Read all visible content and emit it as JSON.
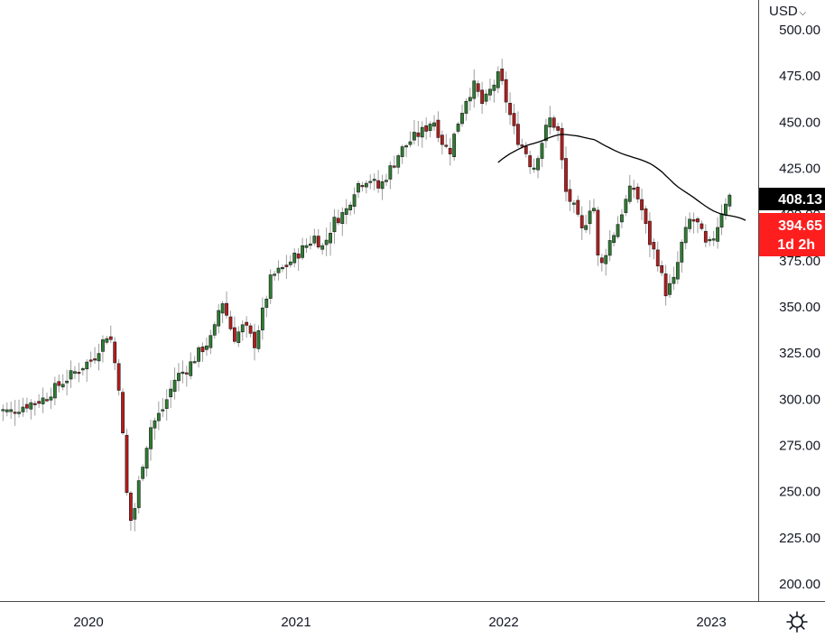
{
  "currency": {
    "label": "USD",
    "chevron": "chevron-down-icon"
  },
  "settings": {
    "icon": "gear-icon"
  },
  "chart_data": {
    "type": "candlestick",
    "x_ticks": [
      "2020",
      "2021",
      "2022",
      "2023"
    ],
    "x_tick_times": [
      2020.0,
      2021.0,
      2022.0,
      2023.0
    ],
    "y_ticks": [
      "200.00",
      "225.00",
      "250.00",
      "275.00",
      "300.00",
      "325.00",
      "350.00",
      "375.00",
      "400.00",
      "425.00",
      "450.00",
      "475.00",
      "500.00"
    ],
    "y_tick_values": [
      200,
      225,
      250,
      275,
      300,
      325,
      350,
      375,
      400,
      425,
      450,
      475,
      500
    ],
    "ylim": [
      194,
      503
    ],
    "xlim": [
      2019.55,
      2023.32
    ],
    "colors": {
      "up": "#26a69a",
      "up_fill": "#2e7d32",
      "down": "#b71c1c",
      "wick": "#9e9e9e",
      "ma": "#000000",
      "last": "#ff1e1e",
      "ma_label": "#000000"
    },
    "badges": {
      "ma_value": "408.13",
      "last_price": "394.65",
      "countdown": "1d 2h"
    },
    "ohlc_weekly_close_keypoints": [
      [
        2019.55,
        295
      ],
      [
        2019.62,
        293
      ],
      [
        2019.7,
        297
      ],
      [
        2019.78,
        300
      ],
      [
        2019.86,
        308
      ],
      [
        2019.95,
        316
      ],
      [
        2020.02,
        322
      ],
      [
        2020.1,
        337
      ],
      [
        2020.15,
        305
      ],
      [
        2020.19,
        240
      ],
      [
        2020.21,
        232
      ],
      [
        2020.25,
        260
      ],
      [
        2020.3,
        285
      ],
      [
        2020.36,
        295
      ],
      [
        2020.42,
        312
      ],
      [
        2020.47,
        316
      ],
      [
        2020.53,
        325
      ],
      [
        2020.6,
        334
      ],
      [
        2020.64,
        355
      ],
      [
        2020.7,
        333
      ],
      [
        2020.75,
        340
      ],
      [
        2020.8,
        330
      ],
      [
        2020.85,
        352
      ],
      [
        2020.88,
        366
      ],
      [
        2020.95,
        372
      ],
      [
        2021.02,
        380
      ],
      [
        2021.09,
        388
      ],
      [
        2021.13,
        382
      ],
      [
        2021.18,
        396
      ],
      [
        2021.24,
        402
      ],
      [
        2021.29,
        416
      ],
      [
        2021.35,
        420
      ],
      [
        2021.4,
        414
      ],
      [
        2021.44,
        422
      ],
      [
        2021.5,
        434
      ],
      [
        2021.56,
        441
      ],
      [
        2021.62,
        446
      ],
      [
        2021.66,
        452
      ],
      [
        2021.7,
        440
      ],
      [
        2021.74,
        434
      ],
      [
        2021.78,
        450
      ],
      [
        2021.82,
        463
      ],
      [
        2021.86,
        470
      ],
      [
        2021.9,
        459
      ],
      [
        2021.94,
        468
      ],
      [
        2021.98,
        476
      ],
      [
        2022.02,
        458
      ],
      [
        2022.06,
        442
      ],
      [
        2022.1,
        436
      ],
      [
        2022.14,
        424
      ],
      [
        2022.18,
        438
      ],
      [
        2022.22,
        452
      ],
      [
        2022.26,
        446
      ],
      [
        2022.3,
        412
      ],
      [
        2022.34,
        403
      ],
      [
        2022.38,
        390
      ],
      [
        2022.43,
        410
      ],
      [
        2022.46,
        368
      ],
      [
        2022.5,
        383
      ],
      [
        2022.54,
        392
      ],
      [
        2022.58,
        405
      ],
      [
        2022.62,
        416
      ],
      [
        2022.66,
        405
      ],
      [
        2022.7,
        386
      ],
      [
        2022.74,
        376
      ],
      [
        2022.78,
        358
      ],
      [
        2022.82,
        364
      ],
      [
        2022.86,
        385
      ],
      [
        2022.9,
        398
      ],
      [
        2022.94,
        394
      ],
      [
        2022.98,
        381
      ],
      [
        2023.02,
        390
      ],
      [
        2023.06,
        406
      ],
      [
        2023.09,
        410
      ],
      [
        2023.12,
        407
      ],
      [
        2023.14,
        404
      ],
      [
        2023.17,
        398
      ]
    ]
  }
}
